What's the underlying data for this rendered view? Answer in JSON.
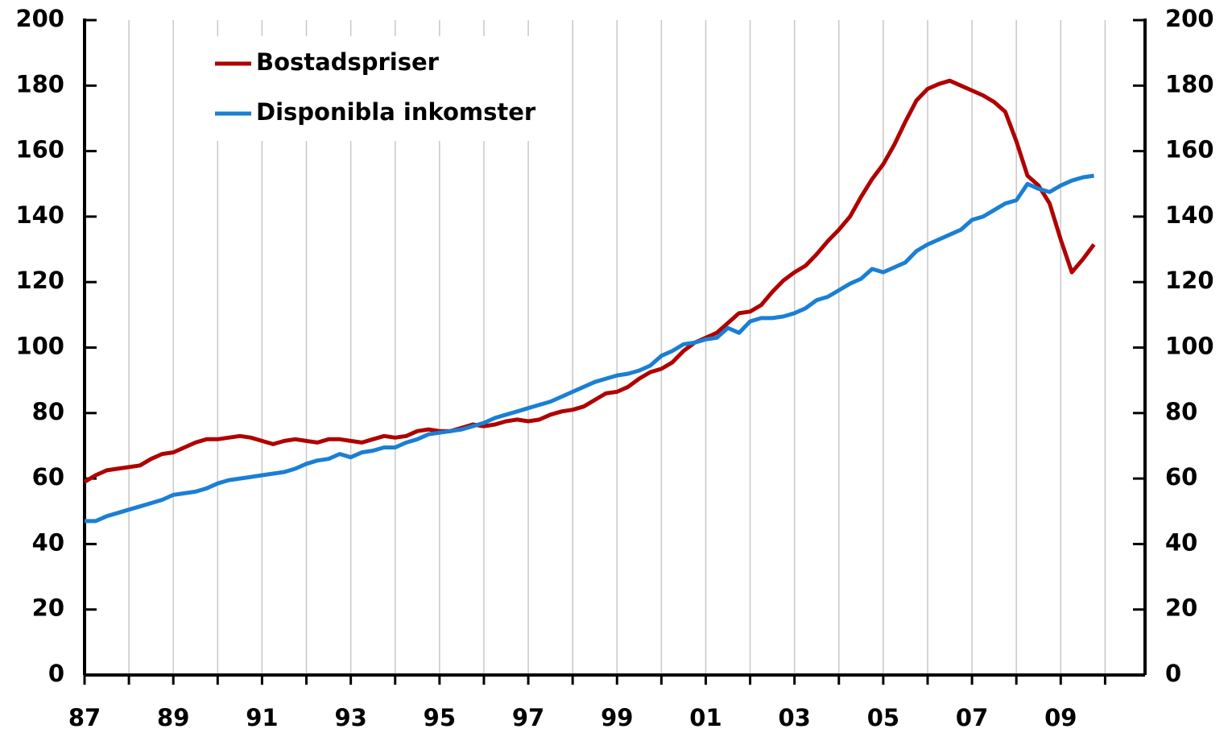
{
  "chart_data": {
    "type": "line",
    "x": [
      1987,
      1987.25,
      1987.5,
      1987.75,
      1988,
      1988.25,
      1988.5,
      1988.75,
      1989,
      1989.25,
      1989.5,
      1989.75,
      1990,
      1990.25,
      1990.5,
      1990.75,
      1991,
      1991.25,
      1991.5,
      1991.75,
      1992,
      1992.25,
      1992.5,
      1992.75,
      1993,
      1993.25,
      1993.5,
      1993.75,
      1994,
      1994.25,
      1994.5,
      1994.75,
      1995,
      1995.25,
      1995.5,
      1995.75,
      1996,
      1996.25,
      1996.5,
      1996.75,
      1997,
      1997.25,
      1997.5,
      1997.75,
      1998,
      1998.25,
      1998.5,
      1998.75,
      1999,
      1999.25,
      1999.5,
      1999.75,
      2000,
      2000.25,
      2000.5,
      2000.75,
      2001,
      2001.25,
      2001.5,
      2001.75,
      2002,
      2002.25,
      2002.5,
      2002.75,
      2003,
      2003.25,
      2003.5,
      2003.75,
      2004,
      2004.25,
      2004.5,
      2004.75,
      2005,
      2005.25,
      2005.5,
      2005.75,
      2006,
      2006.25,
      2006.5,
      2006.75,
      2007,
      2007.25,
      2007.5,
      2007.75,
      2008,
      2008.25,
      2008.5,
      2008.75,
      2009,
      2009.25,
      2009.5,
      2009.75
    ],
    "series": [
      {
        "name": "Bostadspriser",
        "color": "#b00000",
        "values": [
          59,
          61,
          62.5,
          63,
          63.5,
          64,
          66,
          67.5,
          68,
          69.5,
          71,
          72,
          72,
          72.5,
          73,
          72.5,
          71.5,
          70.5,
          71.5,
          72,
          71.5,
          71,
          72,
          72,
          71.5,
          71,
          72,
          73,
          72.5,
          73,
          74.5,
          75,
          74.5,
          74.5,
          75.5,
          76.5,
          76,
          76.5,
          77.5,
          78,
          77.5,
          78,
          79.5,
          80.5,
          81,
          82,
          84,
          86,
          86.5,
          88,
          90.5,
          92.5,
          93.5,
          95.5,
          99,
          101.5,
          103,
          104.5,
          107.5,
          110.5,
          111,
          113,
          117,
          120.5,
          123,
          125,
          128.5,
          132.5,
          136,
          140,
          146,
          151.5,
          156,
          162,
          169,
          175.5,
          179,
          180.5,
          181.5,
          180,
          178.5,
          177,
          175,
          172,
          163,
          152.5,
          149.5,
          144,
          133,
          123,
          127,
          131.5
        ]
      },
      {
        "name": "Disponibla inkomster",
        "color": "#1a7fd4",
        "values": [
          47,
          47,
          48.5,
          49.5,
          50.5,
          51.5,
          52.5,
          53.5,
          55,
          55.5,
          56,
          57,
          58.5,
          59.5,
          60,
          60.5,
          61,
          61.5,
          62,
          63,
          64.5,
          65.5,
          66,
          67.5,
          66.5,
          68,
          68.5,
          69.5,
          69.5,
          71,
          72,
          73.5,
          74,
          74.5,
          75,
          76,
          77,
          78.5,
          79.5,
          80.5,
          81.5,
          82.5,
          83.5,
          85,
          86.5,
          88,
          89.5,
          90.5,
          91.5,
          92,
          93,
          94.5,
          97.5,
          99,
          101,
          101.5,
          102.5,
          103,
          106,
          104.5,
          108,
          109,
          109,
          109.5,
          110.5,
          112,
          114.5,
          115.5,
          117.5,
          119.5,
          121,
          124,
          123,
          124.5,
          126,
          129.5,
          131.5,
          133,
          134.5,
          136,
          139,
          140,
          142,
          144,
          145,
          150,
          148.5,
          147.5,
          149.5,
          151,
          152,
          152.5
        ]
      }
    ],
    "xlim": [
      1987,
      2010.9
    ],
    "xticks": [
      {
        "value": 1987,
        "label": "87"
      },
      {
        "value": 1989,
        "label": "89"
      },
      {
        "value": 1991,
        "label": "91"
      },
      {
        "value": 1993,
        "label": "93"
      },
      {
        "value": 1995,
        "label": "95"
      },
      {
        "value": 1997,
        "label": "97"
      },
      {
        "value": 1999,
        "label": "99"
      },
      {
        "value": 2001,
        "label": "01"
      },
      {
        "value": 2003,
        "label": "03"
      },
      {
        "value": 2005,
        "label": "05"
      },
      {
        "value": 2007,
        "label": "07"
      },
      {
        "value": 2009,
        "label": "09"
      }
    ],
    "xminor_ticks": [
      1988,
      1990,
      1992,
      1994,
      1996,
      1998,
      2000,
      2002,
      2004,
      2006,
      2008,
      2010
    ],
    "ylim": [
      0,
      200
    ],
    "yticks": [
      0,
      20,
      40,
      60,
      80,
      100,
      120,
      140,
      160,
      180,
      200
    ],
    "y2lim": [
      0,
      200
    ],
    "y2ticks": [
      0,
      20,
      40,
      60,
      80,
      100,
      120,
      140,
      160,
      180,
      200
    ],
    "grid": true,
    "legend": "upper left"
  }
}
